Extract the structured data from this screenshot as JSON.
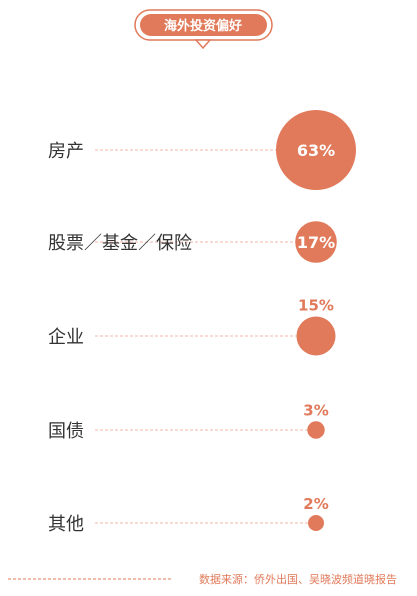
{
  "chart_data": {
    "type": "bubble",
    "title": "海外投资偏好",
    "unit": "%",
    "categories": [
      "房产",
      "股票／基金／保险",
      "企业",
      "国债",
      "其他"
    ],
    "values": [
      63,
      17,
      15,
      3,
      2
    ],
    "value_labels": [
      "63%",
      "17%",
      "15%",
      "3%",
      "2%"
    ],
    "source": "数据来源：侨外出国、吴晓波频道晓报告",
    "colors": {
      "accent": "#e07a5a",
      "label": "#333333",
      "leader": "#f0b8a8",
      "title_text": "#ffffff"
    }
  }
}
